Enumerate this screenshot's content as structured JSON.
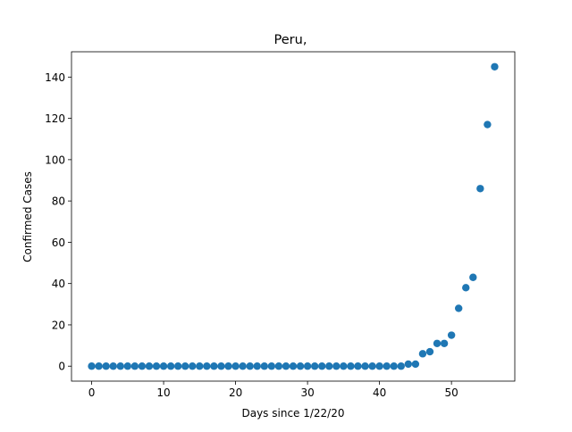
{
  "chart_data": {
    "type": "scatter",
    "title": "Peru,",
    "xlabel": "Days since 1/22/20",
    "ylabel": "Confirmed Cases",
    "xlim": [
      -2.8,
      58.8
    ],
    "ylim": [
      -7.25,
      152.25
    ],
    "xticks": [
      0,
      10,
      20,
      30,
      40,
      50
    ],
    "yticks": [
      0,
      20,
      40,
      60,
      80,
      100,
      120,
      140
    ],
    "grid": false,
    "marker_color": "#1f77b4",
    "x": [
      0,
      1,
      2,
      3,
      4,
      5,
      6,
      7,
      8,
      9,
      10,
      11,
      12,
      13,
      14,
      15,
      16,
      17,
      18,
      19,
      20,
      21,
      22,
      23,
      24,
      25,
      26,
      27,
      28,
      29,
      30,
      31,
      32,
      33,
      34,
      35,
      36,
      37,
      38,
      39,
      40,
      41,
      42,
      43,
      44,
      45,
      46,
      47,
      48,
      49,
      50,
      51,
      52,
      53,
      54,
      55,
      56
    ],
    "y": [
      0,
      0,
      0,
      0,
      0,
      0,
      0,
      0,
      0,
      0,
      0,
      0,
      0,
      0,
      0,
      0,
      0,
      0,
      0,
      0,
      0,
      0,
      0,
      0,
      0,
      0,
      0,
      0,
      0,
      0,
      0,
      0,
      0,
      0,
      0,
      0,
      0,
      0,
      0,
      0,
      0,
      0,
      0,
      0,
      1,
      1,
      6,
      7,
      11,
      11,
      15,
      28,
      38,
      43,
      86,
      117,
      145
    ]
  }
}
